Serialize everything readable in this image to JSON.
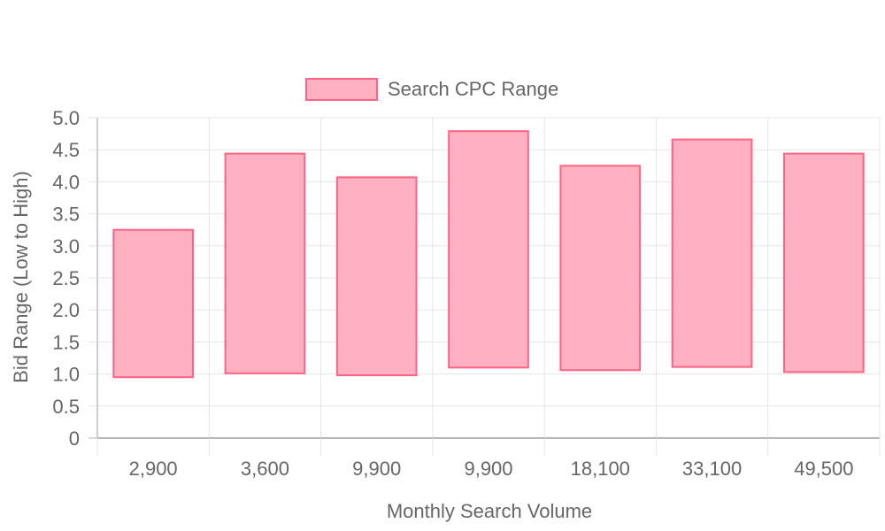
{
  "chart_data": {
    "type": "bar",
    "subtype": "floating-range",
    "categories": [
      "2,900",
      "3,600",
      "9,900",
      "9,900",
      "18,100",
      "33,100",
      "49,500"
    ],
    "series": [
      {
        "name": "Search CPC Range",
        "ranges": [
          [
            0.95,
            3.25
          ],
          [
            1.01,
            4.44
          ],
          [
            0.98,
            4.07
          ],
          [
            1.1,
            4.79
          ],
          [
            1.06,
            4.25
          ],
          [
            1.11,
            4.66
          ],
          [
            1.03,
            4.44
          ]
        ]
      }
    ],
    "xlabel": "Monthly Search Volume",
    "ylabel": "Bid Range (Low to High)",
    "ylim": [
      0,
      5.0
    ],
    "yticks": [
      "0",
      "0.5",
      "1.0",
      "1.5",
      "2.0",
      "2.5",
      "3.0",
      "3.5",
      "4.0",
      "4.5",
      "5.0"
    ],
    "grid": true,
    "legend_position": "top",
    "colors": {
      "fill": "#ffb1c1",
      "border": "#ff6384",
      "grid": "#e5e5e5",
      "axis": "#9e9e9e",
      "text": "#666666"
    }
  }
}
